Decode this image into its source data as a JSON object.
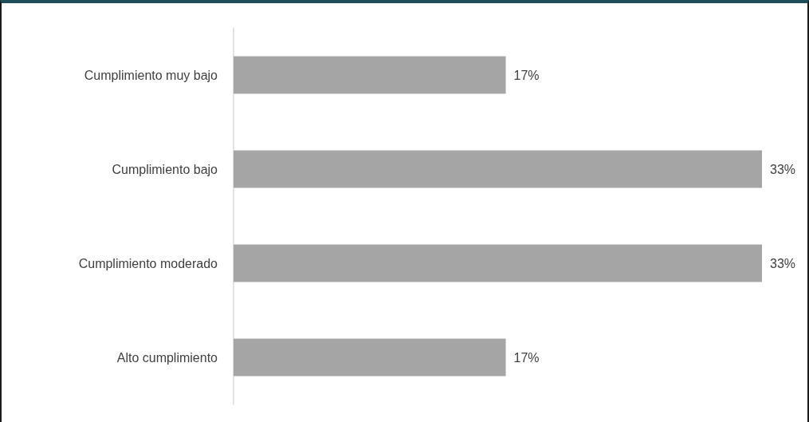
{
  "chart_data": {
    "type": "bar",
    "orientation": "horizontal",
    "categories": [
      "Cumplimiento muy bajo",
      "Cumplimiento bajo",
      "Cumplimiento moderado",
      "Alto cumplimiento"
    ],
    "values": [
      17,
      33,
      33,
      17
    ],
    "value_labels": [
      "17%",
      "33%",
      "33%",
      "17%"
    ],
    "color": "#a5a5a5"
  }
}
